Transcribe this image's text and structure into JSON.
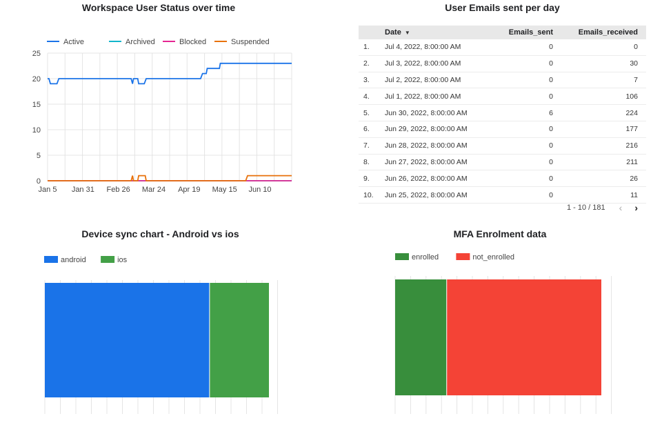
{
  "chart_data": [
    {
      "type": "line",
      "title": "Workspace User Status over time",
      "legend_position": "top",
      "grid": true,
      "x_ticks": [
        "Jan 5",
        "Jan 31",
        "Feb 26",
        "Mar 24",
        "Apr 19",
        "May 15",
        "Jun 10"
      ],
      "ylim": [
        0,
        25
      ],
      "y_ticks": [
        0,
        5,
        10,
        15,
        20,
        25
      ],
      "series": [
        {
          "name": "Active",
          "color": "#1a73e8",
          "points": [
            [
              0,
              20
            ],
            [
              1.5,
              20
            ],
            [
              3,
              19
            ],
            [
              10,
              19
            ],
            [
              12,
              20
            ],
            [
              89,
              20
            ],
            [
              90.5,
              19
            ],
            [
              91.5,
              20
            ],
            [
              96,
              20
            ],
            [
              97,
              19
            ],
            [
              103,
              19
            ],
            [
              105,
              20
            ],
            [
              163,
              20
            ],
            [
              165,
              21
            ],
            [
              169,
              21
            ],
            [
              170,
              22
            ],
            [
              183,
              22
            ],
            [
              184,
              23
            ],
            [
              260,
              23
            ]
          ]
        },
        {
          "name": "Archived",
          "color": "#12b5cb",
          "points": [
            [
              0,
              0
            ],
            [
              260,
              0
            ]
          ]
        },
        {
          "name": "Blocked",
          "color": "#e52592",
          "points": [
            [
              0,
              0
            ],
            [
              260,
              0
            ]
          ]
        },
        {
          "name": "Suspended",
          "color": "#e8710a",
          "points": [
            [
              0,
              0
            ],
            [
              89,
              0
            ],
            [
              90.5,
              1
            ],
            [
              91.5,
              0
            ],
            [
              96,
              0
            ],
            [
              97,
              1
            ],
            [
              104,
              1
            ],
            [
              105,
              0
            ],
            [
              211,
              0
            ],
            [
              213,
              1
            ],
            [
              260,
              1
            ]
          ]
        }
      ]
    },
    {
      "type": "table",
      "title": "User Emails sent per day",
      "columns": [
        "Date",
        "Emails_sent",
        "Emails_received"
      ],
      "sort_column": "Date",
      "sort_direction": "desc",
      "rows": [
        {
          "idx": "1.",
          "date": "Jul 4, 2022, 8:00:00 AM",
          "sent": "0",
          "received": "0"
        },
        {
          "idx": "2.",
          "date": "Jul 3, 2022, 8:00:00 AM",
          "sent": "0",
          "received": "30"
        },
        {
          "idx": "3.",
          "date": "Jul 2, 2022, 8:00:00 AM",
          "sent": "0",
          "received": "7"
        },
        {
          "idx": "4.",
          "date": "Jul 1, 2022, 8:00:00 AM",
          "sent": "0",
          "received": "106"
        },
        {
          "idx": "5.",
          "date": "Jun 30, 2022, 8:00:00 AM",
          "sent": "6",
          "received": "224"
        },
        {
          "idx": "6.",
          "date": "Jun 29, 2022, 8:00:00 AM",
          "sent": "0",
          "received": "177"
        },
        {
          "idx": "7.",
          "date": "Jun 28, 2022, 8:00:00 AM",
          "sent": "0",
          "received": "216"
        },
        {
          "idx": "8.",
          "date": "Jun 27, 2022, 8:00:00 AM",
          "sent": "0",
          "received": "211"
        },
        {
          "idx": "9.",
          "date": "Jun 26, 2022, 8:00:00 AM",
          "sent": "0",
          "received": "26"
        },
        {
          "idx": "10.",
          "date": "Jun 25, 2022, 8:00:00 AM",
          "sent": "0",
          "received": "11"
        }
      ],
      "pagination": "1 - 10 / 181"
    },
    {
      "type": "bar",
      "stacked": "100%",
      "title": "Device sync chart - Android vs ios",
      "legend_position": "top-left",
      "grid": true,
      "series": [
        {
          "name": "android",
          "color": "#1a73e8",
          "share": 0.735
        },
        {
          "name": "ios",
          "color": "#43a047",
          "share": 0.265
        }
      ]
    },
    {
      "type": "bar",
      "stacked": "100%",
      "title": "MFA Enrolment data",
      "legend_position": "top-left",
      "grid": true,
      "series": [
        {
          "name": "enrolled",
          "color": "#388e3c",
          "share": 0.25
        },
        {
          "name": "not_enrolled",
          "color": "#f44336",
          "share": 0.75
        }
      ]
    }
  ]
}
